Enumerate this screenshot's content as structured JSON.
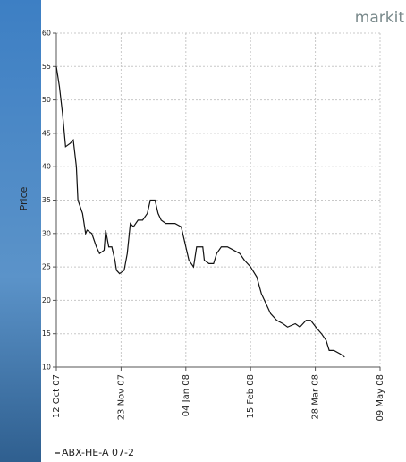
{
  "logo": "markit",
  "chart_data": {
    "type": "line",
    "ylabel": "Price",
    "x": [
      "2007-10-12",
      "2007-10-14",
      "2007-10-16",
      "2007-10-18",
      "2007-10-21",
      "2007-10-23",
      "2007-10-25",
      "2007-10-26",
      "2007-10-29",
      "2007-10-31",
      "2007-11-01",
      "2007-11-04",
      "2007-11-07",
      "2007-11-09",
      "2007-11-12",
      "2007-11-13",
      "2007-11-15",
      "2007-11-17",
      "2007-11-19",
      "2007-11-20",
      "2007-11-22",
      "2007-11-25",
      "2007-11-27",
      "2007-11-29",
      "2007-12-01",
      "2007-12-04",
      "2007-12-07",
      "2007-12-10",
      "2007-12-12",
      "2007-12-15",
      "2007-12-17",
      "2007-12-19",
      "2007-12-22",
      "2007-12-28",
      "2008-01-01",
      "2008-01-04",
      "2008-01-06",
      "2008-01-09",
      "2008-01-11",
      "2008-01-15",
      "2008-01-16",
      "2008-01-19",
      "2008-01-22",
      "2008-01-24",
      "2008-01-27",
      "2008-01-31",
      "2008-02-04",
      "2008-02-08",
      "2008-02-11",
      "2008-02-15",
      "2008-02-19",
      "2008-02-22",
      "2008-02-25",
      "2008-02-28",
      "2008-03-03",
      "2008-03-07",
      "2008-03-10",
      "2008-03-15",
      "2008-03-18",
      "2008-03-22",
      "2008-03-25",
      "2008-03-29",
      "2008-04-01",
      "2008-04-04",
      "2008-04-06",
      "2008-04-09",
      "2008-04-13",
      "2008-04-16"
    ],
    "series": [
      {
        "name": "ABX-HE-A 07-2",
        "color": "#111111",
        "values": [
          55,
          52,
          48,
          43,
          43.5,
          44,
          40,
          35,
          33,
          30,
          30.5,
          30,
          28,
          27,
          27.5,
          30.5,
          28,
          28,
          26,
          24.5,
          24,
          24.5,
          27,
          31.5,
          31,
          32,
          32,
          33,
          35,
          35,
          33,
          32,
          31.5,
          31.5,
          31,
          28,
          26,
          25,
          28,
          28,
          26,
          25.5,
          25.5,
          27,
          28,
          28,
          27.5,
          27,
          26,
          25,
          23.5,
          21,
          19.5,
          18,
          17,
          16.5,
          16,
          16.5,
          16,
          17,
          17,
          15.8,
          15,
          14,
          12.5,
          12.5,
          12,
          11.5
        ]
      }
    ],
    "xlim": [
      "2007-10-12",
      "2008-05-09"
    ],
    "xticks": [
      {
        "value": "2007-10-12",
        "label": "12 Oct 07"
      },
      {
        "value": "2007-11-23",
        "label": "23 Nov 07"
      },
      {
        "value": "2008-01-04",
        "label": "04 Jan 08"
      },
      {
        "value": "2008-02-15",
        "label": "15 Feb 08"
      },
      {
        "value": "2008-03-28",
        "label": "28 Mar 08"
      },
      {
        "value": "2008-05-09",
        "label": "09 May 08"
      }
    ],
    "ylim": [
      10,
      60
    ],
    "yticks": [
      10,
      15,
      20,
      25,
      30,
      35,
      40,
      45,
      50,
      55,
      60
    ],
    "grid": true
  }
}
